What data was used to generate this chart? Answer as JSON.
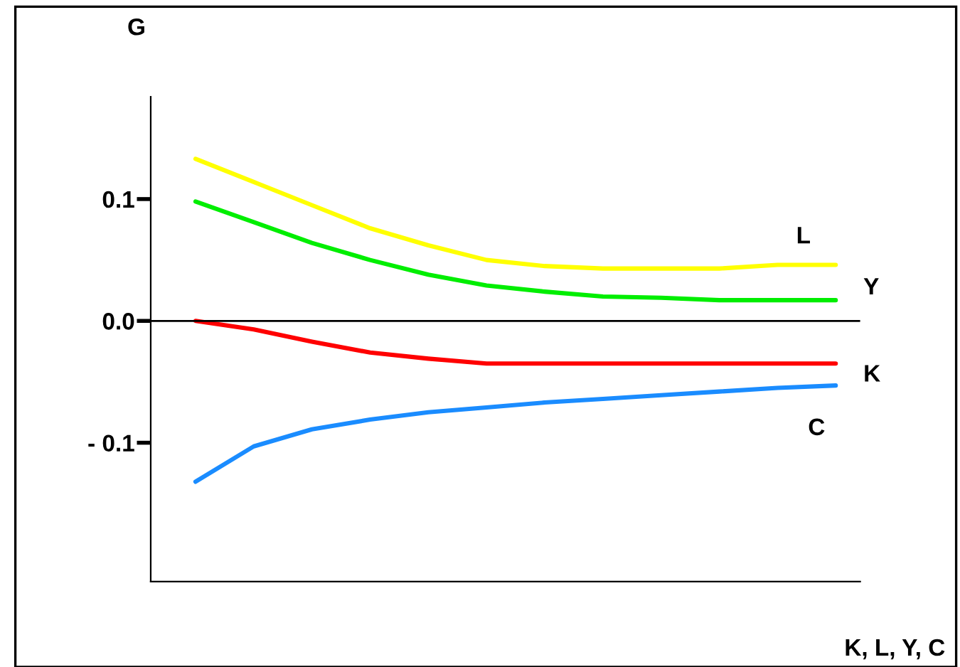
{
  "chart_data": {
    "type": "line",
    "xlabel": "K, L, Y, C",
    "ylabel": "G",
    "categories": [
      null,
      null,
      null,
      null,
      null,
      null,
      null,
      null,
      null,
      null,
      null,
      null
    ],
    "series": [
      {
        "name": "L",
        "color": "#ffff00",
        "values": [
          0.133,
          0.114,
          0.095,
          0.076,
          0.062,
          0.05,
          0.045,
          0.043,
          0.043,
          0.043,
          0.046,
          0.046
        ]
      },
      {
        "name": "Y",
        "color": "#00ee00",
        "values": [
          0.098,
          0.081,
          0.064,
          0.05,
          0.038,
          0.029,
          0.024,
          0.02,
          0.019,
          0.017,
          0.017,
          0.017
        ]
      },
      {
        "name": "K",
        "color": "#ff0000",
        "values": [
          0.0,
          -0.007,
          -0.017,
          -0.026,
          -0.031,
          -0.035,
          -0.035,
          -0.035,
          -0.035,
          -0.035,
          -0.035,
          -0.035
        ]
      },
      {
        "name": "C",
        "color": "#1a8cff",
        "values": [
          -0.132,
          -0.103,
          -0.089,
          -0.081,
          -0.075,
          -0.071,
          -0.067,
          -0.064,
          -0.061,
          -0.058,
          -0.055,
          -0.053
        ]
      }
    ],
    "ylim": [
      -0.214,
      0.184
    ],
    "yticks": [
      {
        "value": -0.1,
        "label": "- 0.1"
      },
      {
        "value": 0,
        "label": "0.0"
      },
      {
        "value": 0.1,
        "label": "0.1"
      }
    ],
    "ref_lines": [
      {
        "axis": "y",
        "value": 0,
        "color": "#000000"
      }
    ],
    "tick_labels": "y",
    "grid": false,
    "legend": false,
    "marker": "none",
    "line_style": "solid"
  }
}
